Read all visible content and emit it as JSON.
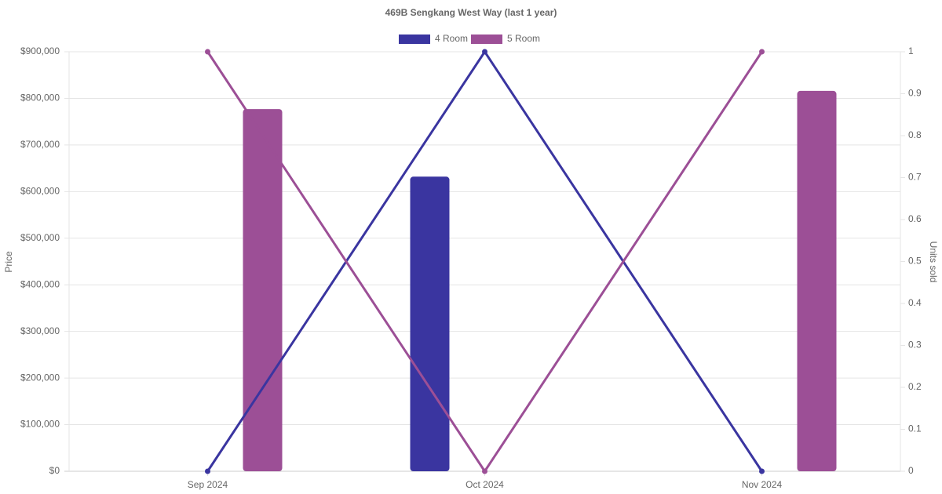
{
  "chart_data": {
    "type": "bar",
    "title": "469B Sengkang West Way (last 1 year)",
    "y_label": "Price",
    "y2_label": "Units sold",
    "categories": [
      "Sep 2024",
      "Oct 2024",
      "Nov 2024"
    ],
    "series": [
      {
        "name": "4 Room",
        "color": "#3a35a0",
        "values": [
          null,
          632000,
          null
        ],
        "units": [
          0,
          1,
          0
        ]
      },
      {
        "name": "5 Room",
        "color": "#9c4f96",
        "values": [
          777000,
          null,
          816000
        ],
        "units": [
          1,
          0,
          1
        ]
      }
    ],
    "ylim": [
      0,
      900000
    ],
    "yticks": [
      {
        "value": 0,
        "label": "$0"
      },
      {
        "value": 100000,
        "label": "$100,000"
      },
      {
        "value": 200000,
        "label": "$200,000"
      },
      {
        "value": 300000,
        "label": "$300,000"
      },
      {
        "value": 400000,
        "label": "$400,000"
      },
      {
        "value": 500000,
        "label": "$500,000"
      },
      {
        "value": 600000,
        "label": "$600,000"
      },
      {
        "value": 700000,
        "label": "$700,000"
      },
      {
        "value": 800000,
        "label": "$800,000"
      },
      {
        "value": 900000,
        "label": "$900,000"
      }
    ],
    "y2lim": [
      0,
      1
    ],
    "y2ticks": [
      0,
      0.1,
      0.2,
      0.3,
      0.4,
      0.5,
      0.6,
      0.7,
      0.8,
      0.9,
      1
    ],
    "grid": true,
    "legend": "top"
  }
}
